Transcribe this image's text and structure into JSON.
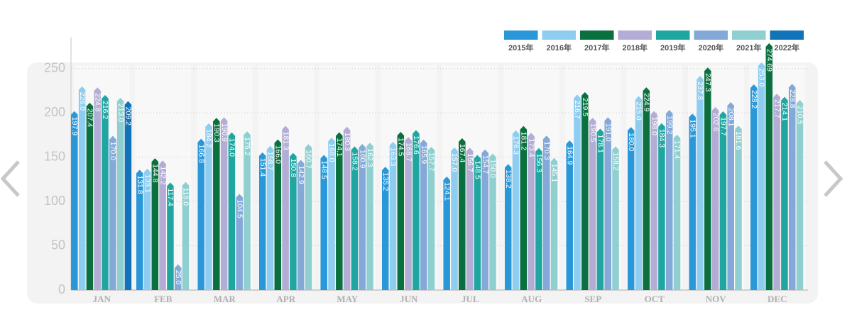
{
  "chart_data": {
    "type": "bar",
    "categories": [
      "JAN",
      "FEB",
      "MAR",
      "APR",
      "MAY",
      "JUN",
      "JUL",
      "AUG",
      "SEP",
      "OCT",
      "NOV",
      "DEC"
    ],
    "ylim": [
      0,
      285
    ],
    "yticks": [
      0,
      50,
      100,
      150,
      200,
      250
    ],
    "grid": true,
    "legend": "top-right",
    "series": [
      {
        "name": "2015年",
        "color": "#2a98d8",
        "values": [
          197.9,
          131.8,
          166.8,
          151.4,
          148.5,
          135.2,
          124.1,
          138.2,
          164.9,
          180.0,
          195.1,
          228.2
        ],
        "value_labels": [
          "197.9",
          "131.8",
          "166.8",
          "151.4",
          "148.5",
          "135.2",
          "124.1",
          "138.2",
          "164.9",
          "180.0",
          "195.1",
          "228.2"
        ]
      },
      {
        "name": "2016年",
        "color": "#8ecdf0",
        "values": [
          226.0,
          133.1,
          184.2,
          158.7,
          168.0,
          163.3,
          157.0,
          176.3,
          216.7,
          215.0,
          237.8,
          253.0
        ],
        "value_labels": [
          "226.0",
          "133.1",
          "184.2",
          "158.7",
          "168.0",
          "163.3",
          "157.0",
          "176.3",
          "216.7",
          "215.0",
          "237.8",
          "253.0"
        ]
      },
      {
        "name": "2017年",
        "color": "#0a7040",
        "values": [
          207.4,
          144.8,
          190.3,
          166.0,
          174.1,
          174.5,
          167.4,
          181.2,
          219.5,
          224.9,
          247.3,
          274.69
        ],
        "value_labels": [
          "207.4",
          "144.8",
          "190.3",
          "166.0",
          "174.1",
          "174.5",
          "167.4",
          "181.2",
          "219.5",
          "224.9",
          "247.3",
          "274.69"
        ]
      },
      {
        "name": "2018年",
        "color": "#b3acd4",
        "values": [
          224.8,
          142.2,
          190.9,
          181.3,
          180.3,
          168.7,
          156.7,
          173.4,
          190.5,
          198.0,
          202.6,
          217.7
        ],
        "value_labels": [
          "224.8",
          "142.2",
          "190.9",
          "181.3",
          "180.3",
          "168.7",
          "156.7",
          "173.4",
          "190.5",
          "198.0",
          "202.6",
          "217.7"
        ]
      },
      {
        "name": "2019年",
        "color": "#1fa6a0",
        "values": [
          216.2,
          117.4,
          174.0,
          150.8,
          158.2,
          176.6,
          148.5,
          156.3,
          178.1,
          184.3,
          197.7,
          214.1
        ],
        "value_labels": [
          "216.2",
          "117.4",
          "174.0",
          "150.8",
          "158.2",
          "176.6",
          "148.5",
          "156.3",
          "178.1",
          "184.3",
          "197.7",
          "214.1"
        ]
      },
      {
        "name": "2020年",
        "color": "#84a8d8",
        "values": [
          170.0,
          25.0,
          104.5,
          142.9,
          160.9,
          165.9,
          154.7,
          170.3,
          191.0,
          199.2,
          208.1,
          228.8
        ],
        "value_labels": [
          "170.0",
          "25.0",
          "104.5",
          "142.9",
          "160.9",
          "165.9",
          "154.7",
          "170.3",
          "191.0",
          "199.2",
          "208.1",
          "228.8"
        ]
      },
      {
        "name": "2021年",
        "color": "#8fcfcf",
        "values": [
          213.0,
          118.0,
          175.2,
          160.7,
          162.3,
          157.7,
          150.0,
          145.1,
          158.2,
          171.4,
          181.6,
          210.5
        ],
        "value_labels": [
          "213.0",
          "118.0",
          "175.2",
          "160.7",
          "162.3",
          "157.7",
          "150.0",
          "145.1",
          "158.2",
          "171.4",
          "181.6",
          "210.5"
        ]
      },
      {
        "name": "2022年",
        "color": "#1173b8",
        "values": [
          209.2,
          null,
          null,
          null,
          null,
          null,
          null,
          null,
          null,
          null,
          null,
          null
        ],
        "value_labels": [
          "209.2",
          null,
          null,
          null,
          null,
          null,
          null,
          null,
          null,
          null,
          null,
          null
        ]
      }
    ]
  }
}
